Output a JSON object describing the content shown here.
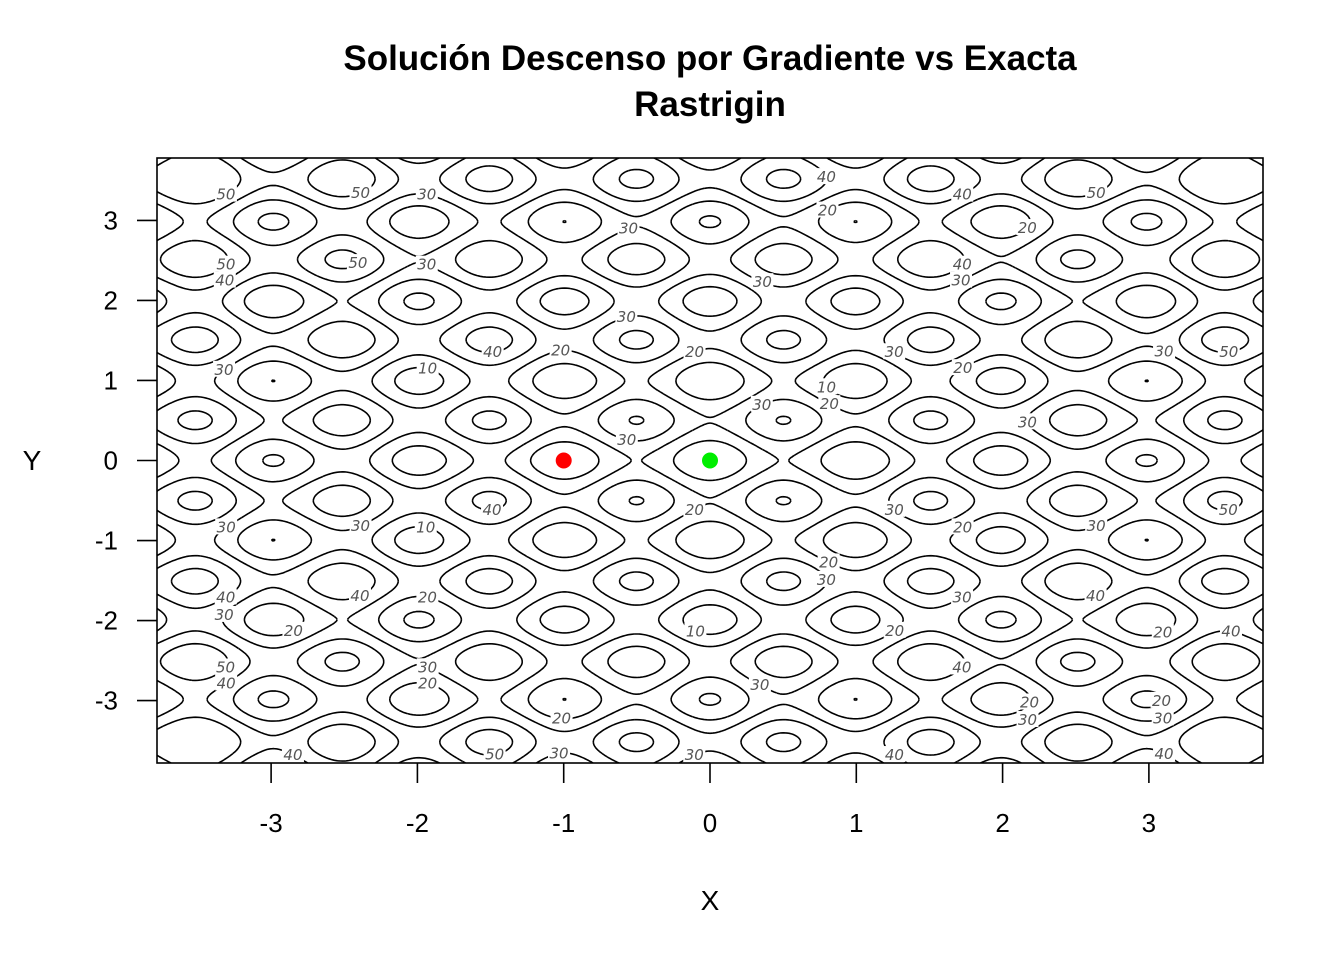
{
  "chart_data": {
    "type": "contour",
    "title": "Solución Descenso por Gradiente vs Exacta",
    "subtitle": "Rastrigin",
    "xlabel": "X",
    "ylabel": "Y",
    "xlim": [
      -3.78,
      3.78
    ],
    "ylim": [
      -3.78,
      3.78
    ],
    "x_ticks": [
      "-3",
      "-2",
      "-1",
      "0",
      "1",
      "2",
      "3"
    ],
    "y_ticks": [
      "-3",
      "-2",
      "-1",
      "0",
      "1",
      "2",
      "3"
    ],
    "contour_levels": [
      10,
      20,
      30,
      40,
      50
    ],
    "grid": false,
    "points": [
      {
        "x": -1.0,
        "y": 0.0,
        "color": "#ff0000"
      },
      {
        "x": 0.0,
        "y": 0.0,
        "color": "#00ee00"
      }
    ]
  }
}
